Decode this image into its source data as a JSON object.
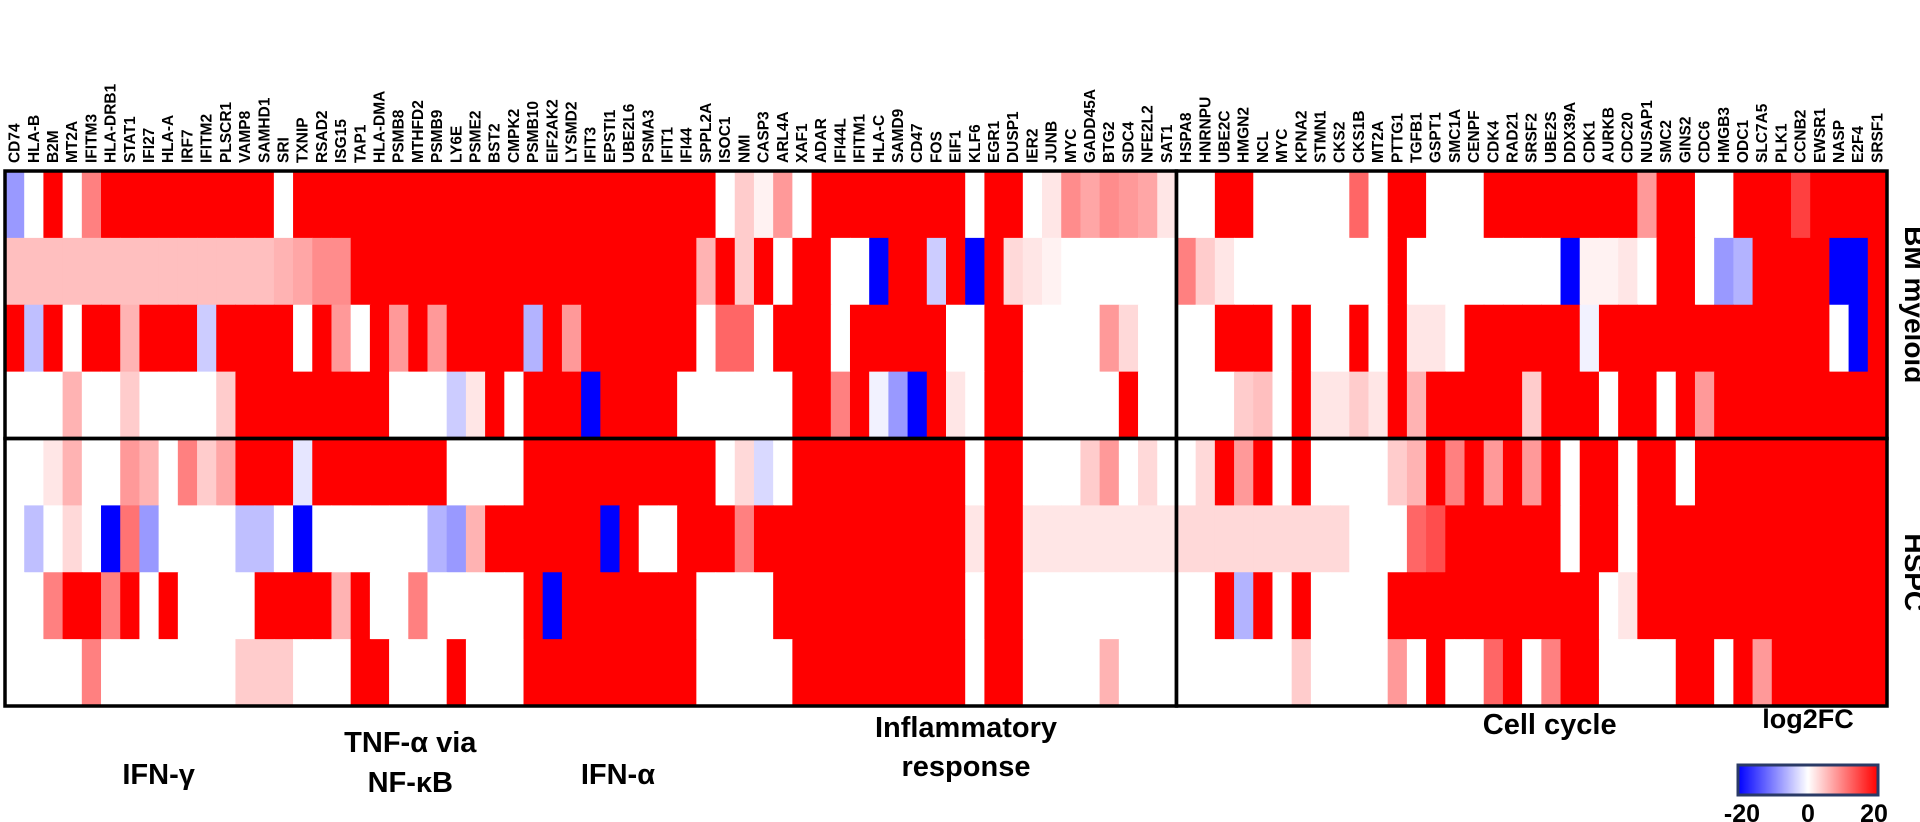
{
  "chart_data": {
    "type": "heatmap",
    "columns": [
      "CD74",
      "HLA-B",
      "B2M",
      "MT2A",
      "IFITM3",
      "HLA-DRB1",
      "STAT1",
      "IFI27",
      "HLA-A",
      "IRF7",
      "IFITM2",
      "PLSCR1",
      "VAMP8",
      "SAMHD1",
      "SRI",
      "TXNIP",
      "RSAD2",
      "ISG15",
      "TAP1",
      "HLA-DMA",
      "PSMB8",
      "MTHFD2",
      "PSMB9",
      "LY6E",
      "PSME2",
      "BST2",
      "CMPK2",
      "PSMB10",
      "EIF2AK2",
      "LYSMD2",
      "IFIT3",
      "EPSTI1",
      "UBE2L6",
      "PSMA3",
      "IFIT1",
      "IFI44",
      "SPPL2A",
      "ISOC1",
      "NMI",
      "CASP3",
      "ARL4A",
      "XAF1",
      "ADAR",
      "IFI44L",
      "IFITM1",
      "HLA-C",
      "SAMD9",
      "CD47",
      "FOS",
      "EIF1",
      "KLF6",
      "EGR1",
      "DUSP1",
      "IER2",
      "JUNB",
      "MYC",
      "GADD45A",
      "BTG2",
      "SDC4",
      "NFE2L2",
      "SAT1",
      "HSPA8",
      "HNRNPU",
      "UBE2C",
      "HMGN2",
      "NCL",
      "MYC",
      "KPNA2",
      "STMN1",
      "CKS2",
      "CKS1B",
      "MT2A",
      "PTTG1",
      "TGFB1",
      "GSPT1",
      "SMC1A",
      "CENPF",
      "CDK4",
      "RAD21",
      "SRSF2",
      "UBE2S",
      "DDX39A",
      "CDK1",
      "AURKB",
      "CDC20",
      "NUSAP1",
      "SMC2",
      "GINS2",
      "CDC6",
      "HMGB3",
      "ODC1",
      "SLC7A5",
      "PLK1",
      "CCNB2",
      "EWSR1",
      "NASP",
      "E2F4",
      "SRSF1"
    ],
    "row_groups": [
      "BM myeloid",
      "HSPC"
    ],
    "rows_per_group": 4,
    "pathways": [
      {
        "label_lines": [
          "IFN-γ"
        ],
        "start": 0,
        "end": 16
      },
      {
        "label_lines": [
          "TNF-α via",
          "NF-κB"
        ],
        "start": 16,
        "end": 26
      },
      {
        "label_lines": [
          "IFN-α"
        ],
        "start": 26,
        "end": 37
      },
      {
        "label_lines": [
          "Inflammatory",
          "response"
        ],
        "start": 37,
        "end": 61
      },
      {
        "label_lines": [
          "Cell cycle"
        ],
        "start": 61,
        "end": 98
      }
    ],
    "legend": {
      "title": "log2FC",
      "min": -20,
      "max": 20,
      "ticks": [
        "-20",
        "0",
        "20"
      ],
      "low_color": "#0000ff",
      "mid_color": "#ffffff",
      "high_color": "#ff0000"
    },
    "values": [
      [
        -8,
        0,
        20,
        0,
        10,
        20,
        20,
        20,
        20,
        20,
        20,
        20,
        20,
        20,
        0,
        20,
        20,
        20,
        20,
        20,
        20,
        20,
        20,
        20,
        20,
        20,
        20,
        20,
        20,
        20,
        20,
        20,
        20,
        20,
        20,
        20,
        20,
        0,
        4,
        1,
        8,
        0,
        20,
        20,
        20,
        20,
        20,
        20,
        20,
        20,
        0,
        20,
        20,
        0,
        2,
        9,
        7,
        9,
        8,
        7,
        2,
        0,
        0,
        20,
        20,
        0,
        0,
        0,
        0,
        0,
        12,
        0,
        20,
        20,
        0,
        0,
        0,
        20,
        20,
        20,
        20,
        20,
        20,
        20,
        20,
        8,
        20,
        20,
        0,
        0,
        20,
        20,
        20,
        15,
        20,
        20,
        20,
        20
      ],
      [
        5,
        5,
        5,
        5,
        5,
        5,
        5,
        5,
        5,
        5,
        5,
        5,
        5,
        5,
        6,
        7,
        9,
        9,
        20,
        20,
        20,
        20,
        20,
        20,
        20,
        20,
        20,
        20,
        20,
        20,
        20,
        20,
        20,
        20,
        20,
        20,
        6,
        20,
        4,
        20,
        0,
        20,
        20,
        0,
        0,
        -20,
        20,
        20,
        -4,
        20,
        -20,
        20,
        3,
        2,
        1,
        0,
        0,
        0,
        0,
        0,
        0,
        10,
        4,
        2,
        0,
        0,
        0,
        0,
        0,
        0,
        0,
        0,
        20,
        0,
        0,
        0,
        0,
        0,
        0,
        0,
        0,
        -20,
        1,
        1,
        2,
        0,
        20,
        20,
        0,
        -8,
        -6,
        20,
        20,
        20,
        20,
        -20,
        -20,
        20
      ],
      [
        20,
        -5,
        20,
        0,
        20,
        20,
        6,
        20,
        20,
        20,
        -4,
        20,
        20,
        20,
        20,
        0,
        20,
        8,
        0,
        20,
        8,
        20,
        8,
        20,
        20,
        20,
        20,
        -6,
        20,
        8,
        20,
        20,
        20,
        20,
        20,
        20,
        0,
        12,
        12,
        0,
        20,
        20,
        20,
        0,
        20,
        20,
        20,
        20,
        20,
        0,
        0,
        20,
        20,
        0,
        0,
        0,
        0,
        8,
        3,
        0,
        0,
        0,
        0,
        20,
        20,
        20,
        0,
        20,
        0,
        0,
        20,
        0,
        20,
        2,
        2,
        0,
        20,
        20,
        20,
        20,
        20,
        20,
        -1,
        20,
        20,
        20,
        20,
        20,
        20,
        20,
        20,
        20,
        20,
        20,
        20,
        0,
        -20,
        20
      ],
      [
        0,
        0,
        0,
        6,
        0,
        0,
        4,
        0,
        0,
        0,
        0,
        4,
        20,
        20,
        20,
        20,
        20,
        20,
        20,
        20,
        0,
        0,
        0,
        -4,
        2,
        20,
        0,
        20,
        20,
        20,
        -20,
        20,
        20,
        20,
        20,
        0,
        0,
        0,
        0,
        0,
        0,
        20,
        20,
        10,
        20,
        -1,
        -8,
        -20,
        20,
        2,
        0,
        20,
        20,
        0,
        0,
        0,
        0,
        0,
        20,
        0,
        0,
        0,
        0,
        0,
        4,
        5,
        0,
        20,
        2,
        2,
        4,
        2,
        20,
        6,
        20,
        20,
        20,
        20,
        20,
        4,
        20,
        20,
        20,
        0,
        20,
        20,
        0,
        20,
        8,
        20,
        20,
        20,
        20,
        20,
        20,
        20,
        20,
        20
      ],
      [
        0,
        0,
        2,
        6,
        0,
        0,
        8,
        6,
        0,
        10,
        4,
        7,
        20,
        20,
        20,
        -2,
        20,
        20,
        20,
        20,
        20,
        20,
        20,
        0,
        0,
        0,
        0,
        20,
        20,
        20,
        20,
        20,
        20,
        20,
        20,
        20,
        20,
        0,
        3,
        -3,
        0,
        20,
        20,
        20,
        20,
        20,
        20,
        20,
        20,
        20,
        0,
        20,
        20,
        0,
        0,
        0,
        4,
        8,
        0,
        3,
        0,
        0,
        3,
        20,
        8,
        20,
        0,
        20,
        0,
        0,
        0,
        0,
        4,
        6,
        20,
        10,
        20,
        8,
        20,
        8,
        20,
        0,
        20,
        20,
        0,
        20,
        20,
        0,
        20,
        20,
        20,
        20,
        20,
        20,
        20,
        20,
        20,
        20
      ],
      [
        0,
        -5,
        0,
        3,
        0,
        -20,
        11,
        -8,
        0,
        0,
        0,
        0,
        -5,
        -5,
        0,
        -20,
        0,
        0,
        0,
        0,
        0,
        0,
        -6,
        -8,
        6,
        20,
        20,
        20,
        20,
        20,
        20,
        -20,
        20,
        0,
        0,
        20,
        20,
        20,
        10,
        20,
        20,
        20,
        20,
        20,
        20,
        20,
        20,
        20,
        20,
        20,
        2,
        20,
        20,
        2,
        2,
        2,
        2,
        2,
        2,
        2,
        2,
        3,
        3,
        3,
        3,
        3,
        3,
        3,
        3,
        3,
        0,
        0,
        0,
        12,
        14,
        20,
        20,
        20,
        20,
        20,
        20,
        0,
        20,
        20,
        0,
        20,
        20,
        20,
        20,
        20,
        20,
        20,
        20,
        20,
        20,
        20,
        20,
        20
      ],
      [
        0,
        0,
        10,
        20,
        20,
        10,
        20,
        0,
        20,
        0,
        0,
        0,
        0,
        20,
        20,
        20,
        20,
        6,
        20,
        0,
        0,
        10,
        0,
        0,
        0,
        0,
        0,
        20,
        -20,
        20,
        20,
        20,
        20,
        20,
        20,
        20,
        0,
        0,
        0,
        0,
        20,
        20,
        20,
        20,
        20,
        20,
        20,
        20,
        20,
        20,
        0,
        20,
        20,
        0,
        0,
        0,
        0,
        0,
        0,
        0,
        0,
        0,
        0,
        20,
        -6,
        20,
        0,
        20,
        0,
        0,
        0,
        0,
        20,
        20,
        20,
        20,
        20,
        20,
        20,
        20,
        20,
        20,
        20,
        0,
        2,
        20,
        20,
        20,
        20,
        20,
        20,
        20,
        20,
        20,
        20,
        20,
        20,
        20
      ],
      [
        0,
        0,
        0,
        0,
        10,
        0,
        0,
        0,
        0,
        0,
        0,
        0,
        4,
        4,
        4,
        0,
        0,
        0,
        20,
        20,
        0,
        0,
        0,
        20,
        0,
        0,
        0,
        20,
        20,
        20,
        20,
        20,
        20,
        20,
        20,
        20,
        0,
        0,
        0,
        0,
        0,
        20,
        20,
        20,
        20,
        20,
        20,
        20,
        20,
        20,
        0,
        20,
        20,
        0,
        0,
        0,
        0,
        6,
        0,
        0,
        0,
        0,
        0,
        0,
        0,
        0,
        0,
        4,
        0,
        0,
        0,
        0,
        8,
        0,
        20,
        0,
        0,
        12,
        20,
        0,
        10,
        20,
        20,
        0,
        0,
        0,
        0,
        20,
        20,
        0,
        20,
        8,
        20,
        20,
        20,
        20,
        20,
        20
      ]
    ]
  }
}
